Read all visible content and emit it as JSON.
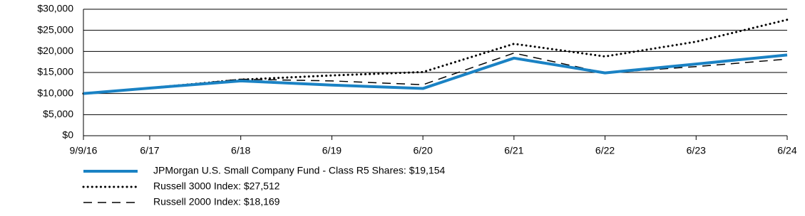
{
  "chart_data": {
    "type": "line",
    "categories": [
      "9/9/16",
      "6/17",
      "6/18",
      "6/19",
      "6/20",
      "6/21",
      "6/22",
      "6/23",
      "6/24"
    ],
    "series": [
      {
        "name": "JPMorgan U.S. Small Company Fund - Class R5 Shares: $19,154",
        "color": "#1a82c4",
        "style": "solid",
        "width": 4,
        "values": [
          10000,
          11300,
          13000,
          12000,
          11200,
          18400,
          14900,
          17000,
          19154
        ]
      },
      {
        "name": "Russell 3000 Index: $27,512",
        "color": "#000000",
        "style": "dotted",
        "width": 3,
        "values": [
          10000,
          11300,
          13300,
          14300,
          15100,
          21800,
          18800,
          22300,
          27512
        ]
      },
      {
        "name": "Russell 2000 Index: $18,169",
        "color": "#000000",
        "style": "dashed",
        "width": 1.5,
        "values": [
          10000,
          11300,
          13400,
          13000,
          12100,
          19600,
          14900,
          16400,
          18169
        ]
      }
    ],
    "ylim": [
      0,
      30000
    ],
    "yticks": [
      {
        "value": 0,
        "label": "$0"
      },
      {
        "value": 5000,
        "label": "$5,000"
      },
      {
        "value": 10000,
        "label": "$10,000"
      },
      {
        "value": 15000,
        "label": "$15,000"
      },
      {
        "value": 20000,
        "label": "$20,000"
      },
      {
        "value": 25000,
        "label": "$25,000"
      },
      {
        "value": 30000,
        "label": "$30,000"
      }
    ],
    "grid": true
  }
}
